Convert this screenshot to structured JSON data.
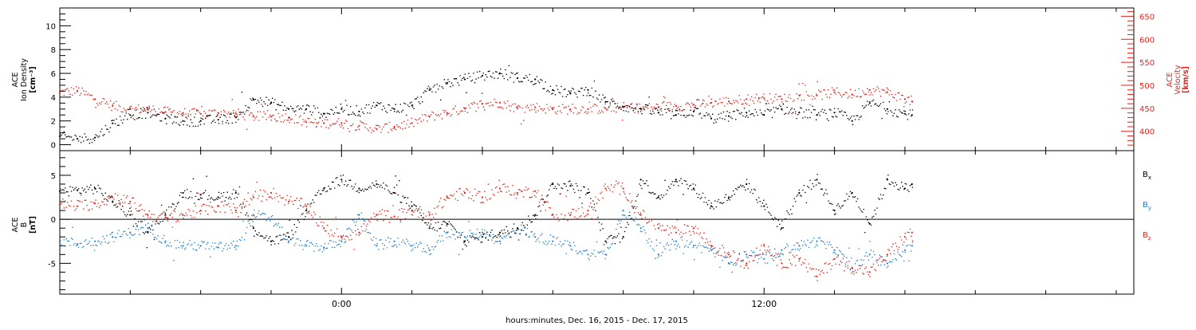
{
  "xaxis": {
    "label": "hours:minutes, Dec. 16, 2015 - Dec. 17, 2015",
    "range": [
      -8,
      22.5
    ],
    "major_ticks": [
      0,
      12
    ],
    "major_tick_labels": [
      "0:00",
      "12:00"
    ],
    "minor_ticks": [
      -6,
      -4,
      -2,
      2,
      4,
      6,
      8,
      10,
      14,
      16,
      18,
      20,
      22
    ]
  },
  "panels": [
    {
      "left_label": [
        "ACE",
        "Ion Density",
        "[cm⁻³]"
      ],
      "right_label": [
        "ACE",
        "Velocity",
        "[km/s]"
      ],
      "left_ylim": [
        -0.5,
        11.5
      ],
      "left_ticks": [
        "0",
        "2",
        "4",
        "6",
        "8",
        "10"
      ],
      "right_ylim": [
        358,
        668
      ],
      "right_ticks": [
        "400",
        "450",
        "500",
        "550",
        "600",
        "650"
      ],
      "left_color": "#000000",
      "right_color": "#e8221b"
    },
    {
      "left_label": [
        "ACE",
        "B",
        "[nT]"
      ],
      "ylim": [
        -8.5,
        7.8
      ],
      "ticks": [
        "-5",
        "0",
        "5"
      ],
      "zero_line": true,
      "legend": [
        {
          "label": "Bx",
          "base": "B",
          "sub": "x",
          "color": "#000000"
        },
        {
          "label": "By",
          "base": "B",
          "sub": "y",
          "color": "#1f7fd1"
        },
        {
          "label": "Bz",
          "base": "B",
          "sub": "z",
          "color": "#e8221b"
        }
      ]
    }
  ],
  "chart_data": [
    {
      "type": "scatter",
      "title": "",
      "xlabel": "hours:minutes, Dec. 16, 2015 - Dec. 17, 2015",
      "ylabel": "ACE Ion Density [cm⁻³]",
      "y2label": "ACE Velocity [km/s]",
      "xlim": [
        -8,
        22.5
      ],
      "ylim": [
        -0.5,
        11.5
      ],
      "y2lim": [
        358,
        668
      ],
      "series": [
        {
          "name": "Ion Density",
          "axis": "left",
          "color": "#000000",
          "x": [
            -8.0,
            -7.5,
            -7.0,
            -6.5,
            -6.0,
            -5.5,
            -5.0,
            -4.5,
            -4.0,
            -3.5,
            -3.0,
            -2.5,
            -2.0,
            -1.5,
            -1.0,
            -0.5,
            0.0,
            0.5,
            1.0,
            1.5,
            2.0,
            2.5,
            3.0,
            3.5,
            4.0,
            4.5,
            5.0,
            5.5,
            6.0,
            6.5,
            7.0,
            7.5,
            8.0,
            8.5,
            9.0,
            9.5,
            10.0,
            10.5,
            11.0,
            11.5,
            12.0,
            12.5,
            13.0,
            13.5,
            14.0,
            14.5,
            15.0,
            15.5,
            16.0,
            16.2
          ],
          "values": [
            0.7,
            0.5,
            0.6,
            1.8,
            2.5,
            2.7,
            2.2,
            2.0,
            2.0,
            2.1,
            2.3,
            3.8,
            3.5,
            3.0,
            3.0,
            2.6,
            3.0,
            2.8,
            3.3,
            3.0,
            3.3,
            4.6,
            5.2,
            5.5,
            5.8,
            6.0,
            5.6,
            5.5,
            4.6,
            4.3,
            4.6,
            3.6,
            3.2,
            3.0,
            2.7,
            2.5,
            2.8,
            2.2,
            2.4,
            2.7,
            2.5,
            3.0,
            2.7,
            2.5,
            2.7,
            2.0,
            3.5,
            3.0,
            2.6,
            2.5
          ]
        },
        {
          "name": "Velocity",
          "axis": "right",
          "color": "#e8221b",
          "x": [
            -8.0,
            -7.5,
            -7.0,
            -6.5,
            -6.0,
            -5.5,
            -5.0,
            -4.5,
            -4.0,
            -3.5,
            -3.0,
            -2.5,
            -2.0,
            -1.5,
            -1.0,
            -0.5,
            0.0,
            0.5,
            1.0,
            1.5,
            2.0,
            2.5,
            3.0,
            3.5,
            4.0,
            4.5,
            5.0,
            5.5,
            6.0,
            6.5,
            7.0,
            7.5,
            8.0,
            8.5,
            9.0,
            9.5,
            10.0,
            10.5,
            11.0,
            11.5,
            12.0,
            12.5,
            13.0,
            13.5,
            14.0,
            14.5,
            15.0,
            15.5,
            16.0,
            16.2
          ],
          "values": [
            485,
            488,
            470,
            455,
            448,
            448,
            442,
            440,
            438,
            440,
            438,
            432,
            432,
            430,
            420,
            418,
            418,
            412,
            405,
            410,
            418,
            432,
            440,
            450,
            460,
            462,
            450,
            452,
            448,
            448,
            448,
            450,
            452,
            450,
            452,
            455,
            458,
            462,
            465,
            470,
            472,
            470,
            478,
            478,
            485,
            480,
            490,
            485,
            470,
            465
          ]
        }
      ]
    },
    {
      "type": "scatter",
      "title": "",
      "xlabel": "hours:minutes, Dec. 16, 2015 - Dec. 17, 2015",
      "ylabel": "ACE B [nT]",
      "xlim": [
        -8,
        22.5
      ],
      "ylim": [
        -8.5,
        7.8
      ],
      "series": [
        {
          "name": "Bx",
          "color": "#000000",
          "x": [
            -8.0,
            -7.5,
            -7.0,
            -6.5,
            -6.0,
            -5.5,
            -5.0,
            -4.5,
            -4.0,
            -3.5,
            -3.0,
            -2.5,
            -2.0,
            -1.5,
            -1.0,
            -0.5,
            0.0,
            0.5,
            1.0,
            1.5,
            2.0,
            2.5,
            3.0,
            3.5,
            4.0,
            4.5,
            5.0,
            5.5,
            6.0,
            6.5,
            7.0,
            7.5,
            8.0,
            8.5,
            9.0,
            9.5,
            10.0,
            10.5,
            11.0,
            11.5,
            12.0,
            12.5,
            13.0,
            13.5,
            14.0,
            14.5,
            15.0,
            15.5,
            16.0,
            16.2
          ],
          "values": [
            3.2,
            3.3,
            3.5,
            2.0,
            0.5,
            -1.5,
            0.5,
            3.0,
            2.8,
            2.5,
            3.0,
            -1.0,
            -2.5,
            -2.0,
            1.0,
            3.5,
            4.5,
            3.5,
            4.0,
            3.0,
            1.5,
            -1.0,
            -0.5,
            -2.5,
            -2.0,
            -1.5,
            -1.0,
            0.5,
            4.0,
            3.8,
            3.0,
            -2.5,
            -2.0,
            4.5,
            2.5,
            4.5,
            3.5,
            1.5,
            2.5,
            4.0,
            1.5,
            -1.0,
            3.0,
            4.5,
            1.0,
            3.0,
            -0.5,
            4.5,
            3.5,
            4.0
          ]
        },
        {
          "name": "By",
          "color": "#1f7fd1",
          "x": [
            -8.0,
            -7.5,
            -7.0,
            -6.5,
            -6.0,
            -5.5,
            -5.0,
            -4.5,
            -4.0,
            -3.5,
            -3.0,
            -2.5,
            -2.0,
            -1.5,
            -1.0,
            -0.5,
            0.0,
            0.5,
            1.0,
            1.5,
            2.0,
            2.5,
            3.0,
            3.5,
            4.0,
            4.5,
            5.0,
            5.5,
            6.0,
            6.5,
            7.0,
            7.5,
            8.0,
            8.5,
            9.0,
            9.5,
            10.0,
            10.5,
            11.0,
            11.5,
            12.0,
            12.5,
            13.0,
            13.5,
            14.0,
            14.5,
            15.0,
            15.5,
            16.0,
            16.2
          ],
          "values": [
            -2.5,
            -2.8,
            -2.5,
            -2.0,
            -1.5,
            -1.0,
            -2.5,
            -3.0,
            -3.0,
            -3.2,
            -3.0,
            0.5,
            0.0,
            -2.5,
            -3.0,
            -3.2,
            -2.5,
            0.5,
            -3.0,
            -2.5,
            -3.0,
            -3.5,
            -1.5,
            -2.0,
            -1.5,
            -2.5,
            -1.0,
            -2.0,
            -2.5,
            -3.0,
            -4.0,
            -4.0,
            1.0,
            -1.0,
            -4.0,
            -2.5,
            -3.0,
            -3.5,
            -5.0,
            -4.0,
            -4.5,
            -3.5,
            -3.0,
            -2.5,
            -3.5,
            -5.5,
            -4.0,
            -5.0,
            -3.5,
            -3.0
          ]
        },
        {
          "name": "Bz",
          "color": "#e8221b",
          "x": [
            -8.0,
            -7.5,
            -7.0,
            -6.5,
            -6.0,
            -5.5,
            -5.0,
            -4.5,
            -4.0,
            -3.5,
            -3.0,
            -2.5,
            -2.0,
            -1.5,
            -1.0,
            -0.5,
            0.0,
            0.5,
            1.0,
            1.5,
            2.0,
            2.5,
            3.0,
            3.5,
            4.0,
            4.5,
            5.0,
            5.5,
            6.0,
            6.5,
            7.0,
            7.5,
            8.0,
            8.5,
            9.0,
            9.5,
            10.0,
            10.5,
            11.0,
            11.5,
            12.0,
            12.5,
            13.0,
            13.5,
            14.0,
            14.5,
            15.0,
            15.5,
            16.0,
            16.2
          ],
          "values": [
            1.7,
            1.5,
            1.8,
            2.5,
            2.0,
            0.5,
            0.2,
            0.5,
            1.0,
            1.5,
            1.0,
            2.5,
            3.0,
            2.0,
            1.5,
            -1.0,
            -2.0,
            -1.5,
            0.5,
            0.3,
            1.0,
            0.5,
            2.5,
            3.0,
            2.5,
            3.5,
            3.0,
            3.2,
            0.5,
            0.5,
            1.0,
            3.5,
            3.5,
            0.5,
            -1.0,
            -1.5,
            -1.0,
            -3.0,
            -4.0,
            -5.0,
            -3.0,
            -5.0,
            -4.5,
            -6.5,
            -4.5,
            -5.5,
            -6.0,
            -4.0,
            -2.0,
            -1.5
          ]
        }
      ]
    }
  ]
}
